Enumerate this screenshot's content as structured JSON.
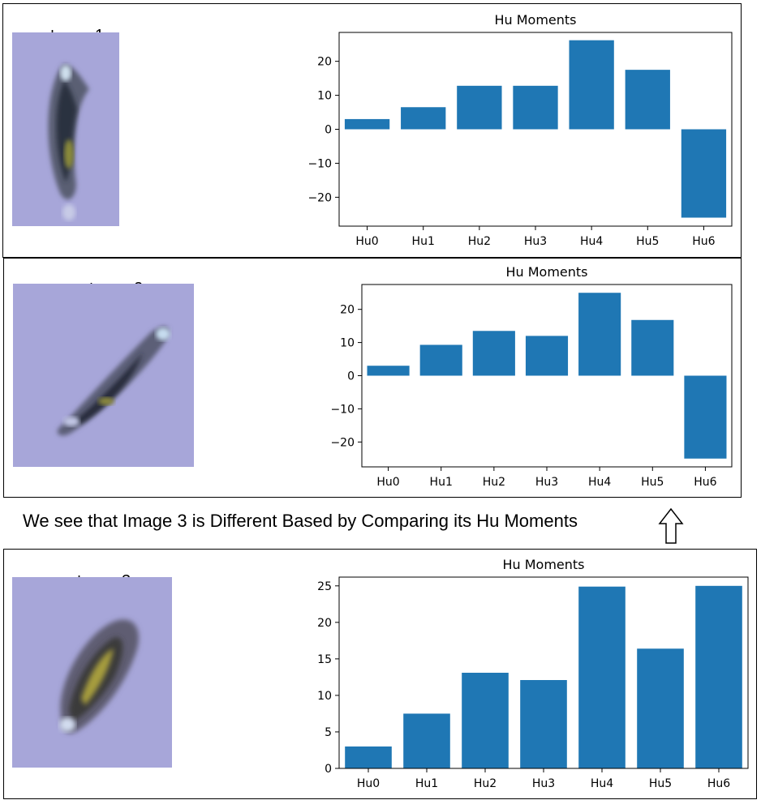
{
  "caption": "We see that Image 3 is Different Based by Comparing its Hu Moments",
  "icons": {
    "arrow": "up-arrow-icon"
  },
  "colors": {
    "bar": "#1f77b4",
    "thumb_bg": "#a7a6d9"
  },
  "panels": [
    {
      "image_title": "Image ",
      "image_number": "1"
    },
    {
      "image_title": "Image ",
      "image_number": "2"
    },
    {
      "image_title": "Image ",
      "image_number": "3"
    }
  ],
  "chart_data": [
    {
      "type": "bar",
      "title": "Hu Moments",
      "categories": [
        "Hu0",
        "Hu1",
        "Hu2",
        "Hu3",
        "Hu4",
        "Hu5",
        "Hu6"
      ],
      "values": [
        3.0,
        6.5,
        12.8,
        12.8,
        26.2,
        17.5,
        -26.0
      ],
      "yticks": [
        -20,
        -10,
        0,
        10,
        20
      ],
      "ylim": [
        -28.5,
        28.5
      ],
      "xlabel": "",
      "ylabel": "",
      "grid": false
    },
    {
      "type": "bar",
      "title": "Hu Moments",
      "categories": [
        "Hu0",
        "Hu1",
        "Hu2",
        "Hu3",
        "Hu4",
        "Hu5",
        "Hu6"
      ],
      "values": [
        3.0,
        9.3,
        13.5,
        12.0,
        25.0,
        16.8,
        -25.0
      ],
      "yticks": [
        -20,
        -10,
        0,
        10,
        20
      ],
      "ylim": [
        -27.5,
        27.5
      ],
      "xlabel": "",
      "ylabel": "",
      "grid": false
    },
    {
      "type": "bar",
      "title": "Hu Moments",
      "categories": [
        "Hu0",
        "Hu1",
        "Hu2",
        "Hu3",
        "Hu4",
        "Hu5",
        "Hu6"
      ],
      "values": [
        3.0,
        7.5,
        13.1,
        12.1,
        24.9,
        16.4,
        25.0
      ],
      "yticks": [
        0,
        5,
        10,
        15,
        20,
        25
      ],
      "ylim": [
        0,
        26.2
      ],
      "xlabel": "",
      "ylabel": "",
      "grid": false
    }
  ]
}
